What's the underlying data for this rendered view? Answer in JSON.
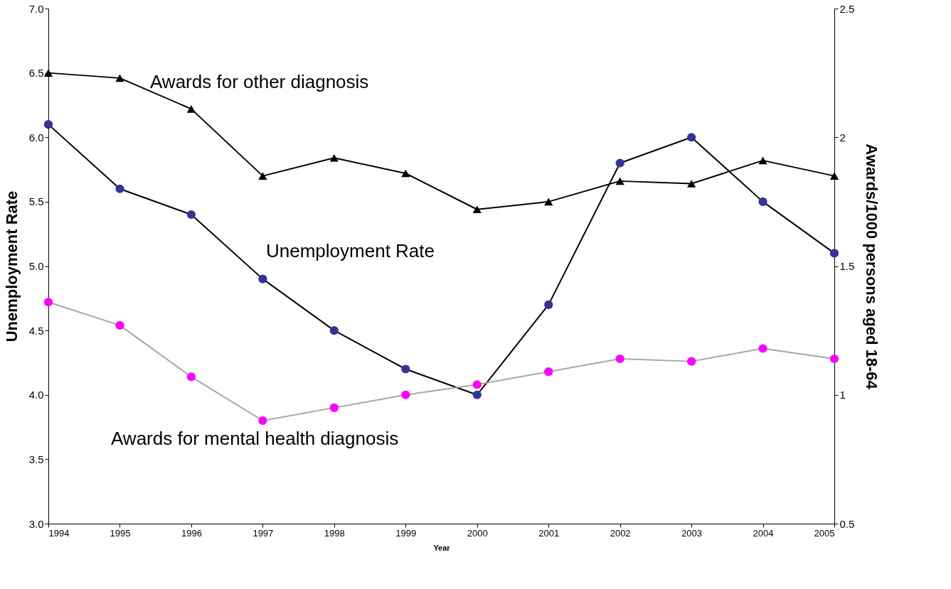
{
  "chart_data": {
    "type": "line",
    "xlabel": "Year",
    "ylabel": "Unemployment Rate",
    "y2label": "Awards/1000 persons aged 18-64",
    "x": [
      1994,
      1995,
      1996,
      1997,
      1998,
      1999,
      2000,
      2001,
      2002,
      2003,
      2004,
      2005
    ],
    "xlim": [
      1994,
      2005
    ],
    "xticks": [
      1994,
      1995,
      1996,
      1997,
      1998,
      1999,
      2000,
      2001,
      2002,
      2003,
      2004,
      2005
    ],
    "ylim": [
      3,
      7
    ],
    "yticks": [
      {
        "value": 3,
        "label": "3.0"
      },
      {
        "value": 3.5,
        "label": "3.5"
      },
      {
        "value": 4,
        "label": "4.0"
      },
      {
        "value": 4.5,
        "label": "4.5"
      },
      {
        "value": 5,
        "label": "5.0"
      },
      {
        "value": 5.5,
        "label": "5.5"
      },
      {
        "value": 6,
        "label": "6.0"
      },
      {
        "value": 6.5,
        "label": "6.5"
      },
      {
        "value": 7,
        "label": "7.0"
      }
    ],
    "y2lim": [
      0.5,
      2.5
    ],
    "y2ticks": [
      0.5,
      1,
      1.5,
      2,
      2.5
    ],
    "grid": false,
    "legend": false,
    "series": [
      {
        "name": "Awards for other diagnosis",
        "color": "#000000",
        "marker": "triangle",
        "axis": "y2",
        "values": [
          2.25,
          2.23,
          2.11,
          1.85,
          1.92,
          1.86,
          1.72,
          1.75,
          1.83,
          1.82,
          1.91,
          1.85
        ]
      },
      {
        "name": "Unemployment Rate",
        "color": "#333399",
        "marker": "circle",
        "values": [
          6.1,
          5.6,
          5.4,
          4.9,
          4.5,
          4.2,
          4.0,
          4.7,
          5.8,
          6.0,
          5.5,
          5.1
        ]
      },
      {
        "name": "Awards for mental health diagnosis",
        "color": "#ff00ff",
        "marker": "circle",
        "axis": "y2",
        "values": [
          1.36,
          1.27,
          1.07,
          0.9,
          0.95,
          1.0,
          1.04,
          1.09,
          1.14,
          1.13,
          1.18,
          1.14
        ]
      }
    ]
  }
}
